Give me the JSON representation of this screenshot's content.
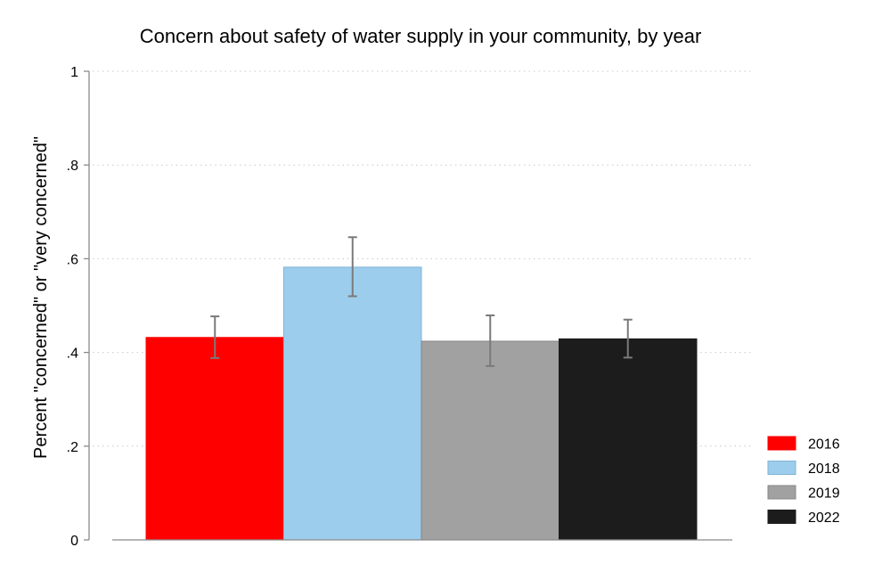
{
  "chart_data": {
    "type": "bar",
    "title": "Concern about safety of water supply in your community, by year",
    "xlabel": "",
    "ylabel": "Percent \"concerned\" or \"very concerned\"",
    "ylim": [
      0,
      1
    ],
    "yticks": [
      0,
      0.2,
      0.4,
      0.6,
      0.8,
      1
    ],
    "ytick_labels": [
      "0",
      ".2",
      ".4",
      ".6",
      ".8",
      "1"
    ],
    "grid": "horizontal dotted",
    "legend_position": "right",
    "series": [
      {
        "name": "2016",
        "value": 0.432,
        "ci_low": 0.388,
        "ci_high": 0.477,
        "color": "#ff0000",
        "edge": "#ff0000"
      },
      {
        "name": "2018",
        "value": 0.582,
        "ci_low": 0.52,
        "ci_high": 0.646,
        "color": "#9dcdec",
        "edge": "#7fb3d6"
      },
      {
        "name": "2019",
        "value": 0.424,
        "ci_low": 0.371,
        "ci_high": 0.479,
        "color": "#a1a1a1",
        "edge": "#888888"
      },
      {
        "name": "2022",
        "value": 0.429,
        "ci_low": 0.389,
        "ci_high": 0.47,
        "color": "#1c1c1c",
        "edge": "#1c1c1c"
      }
    ],
    "errorbar_color": "#7a7a7a"
  }
}
